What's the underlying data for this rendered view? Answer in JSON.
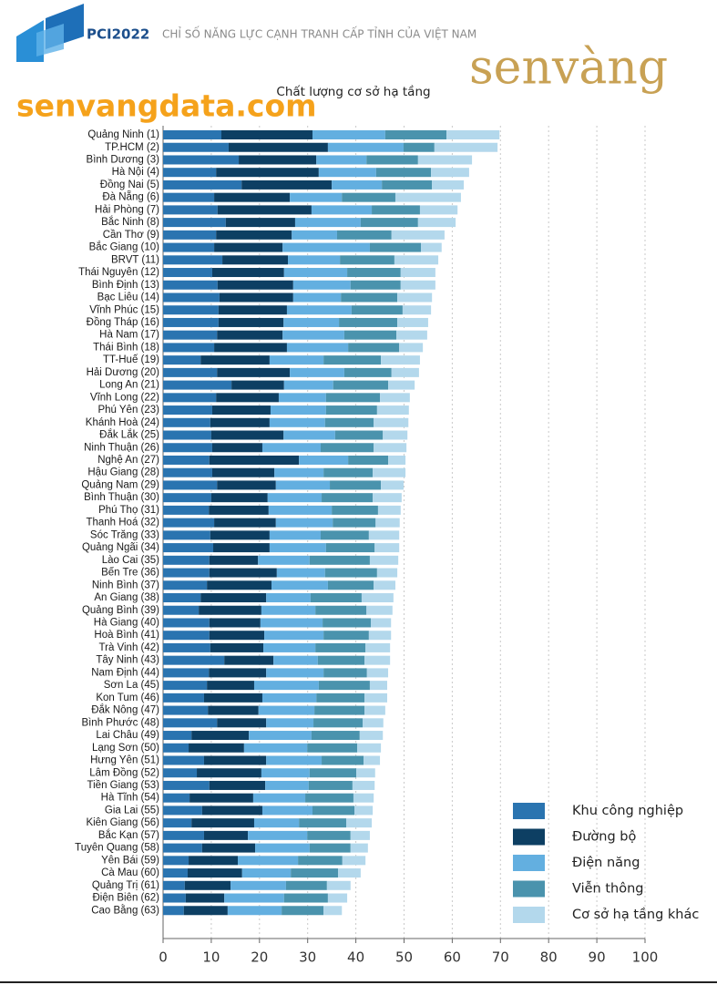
{
  "header": {
    "brand": "PCI2022",
    "subtitle": "CHỈ SỐ NĂNG LỰC CẠNH TRANH CẤP TỈNH CỦA VIỆT NAM",
    "site": "senvangdata.com",
    "logo": "senvàng"
  },
  "chart_data": {
    "type": "bar",
    "orientation": "horizontal",
    "stacked": true,
    "title": "Chất lượng cơ sở hạ tầng",
    "categories": [
      "Quảng Ninh (1)",
      "TP.HCM (2)",
      "Bình Dương (3)",
      "Hà Nội (4)",
      "Đồng Nai (5)",
      "Đà Nẵng (6)",
      "Hải Phòng (7)",
      "Bắc Ninh (8)",
      "Cần Thơ (9)",
      "Bắc Giang (10)",
      "BRVT (11)",
      "Thái Nguyên (12)",
      "Bình Định (13)",
      "Bạc Liêu (14)",
      "Vĩnh Phúc (15)",
      "Đồng Tháp (16)",
      "Hà Nam (17)",
      "Thái Bình (18)",
      "TT-Huế (19)",
      "Hải Dương (20)",
      "Long An (21)",
      "Vĩnh Long (22)",
      "Phú Yên (23)",
      "Khánh Hoà (24)",
      "Đắk Lắk (25)",
      "Ninh Thuận (26)",
      "Nghệ An (27)",
      "Hậu Giang (28)",
      "Quảng Nam (29)",
      "Bình Thuận (30)",
      "Phú Thọ (31)",
      "Thanh Hoá (32)",
      "Sóc Trăng (33)",
      "Quảng Ngãi (34)",
      "Lào Cai (35)",
      "Bến Tre (36)",
      "Ninh Bình (37)",
      "An Giang (38)",
      "Quảng Bình (39)",
      "Hà Giang (40)",
      "Hoà Bình (41)",
      "Trà Vinh (42)",
      "Tây Ninh (43)",
      "Nam Định (44)",
      "Sơn La (45)",
      "Kon Tum (46)",
      "Đắk Nông (47)",
      "Bình Phước (48)",
      "Lai Châu (49)",
      "Lạng Sơn (50)",
      "Hưng Yên (51)",
      "Lâm Đồng (52)",
      "Tiền Giang (53)",
      "Hà Tĩnh (54)",
      "Gia Lai (55)",
      "Kiên Giang (56)",
      "Bắc Kạn (57)",
      "Tuyên Quang (58)",
      "Yên Bái (59)",
      "Cà Mau (60)",
      "Quảng Trị (61)",
      "Điện Biên (62)",
      "Cao Bằng (63)"
    ],
    "series": [
      {
        "name": "Khu công nghiệp",
        "color": "#2a74b0",
        "values": [
          12.1,
          13.6,
          15.7,
          11.0,
          16.3,
          10.6,
          11.3,
          13.0,
          11.0,
          10.6,
          12.3,
          10.2,
          11.3,
          11.7,
          11.5,
          11.5,
          11.2,
          10.6,
          7.8,
          11.2,
          14.2,
          11.0,
          10.2,
          9.8,
          10.0,
          10.2,
          9.6,
          10.2,
          11.2,
          10.0,
          9.5,
          10.6,
          9.8,
          10.4,
          9.6,
          9.6,
          9.1,
          7.8,
          7.4,
          9.6,
          9.6,
          9.8,
          12.7,
          9.5,
          9.1,
          8.5,
          9.3,
          11.2,
          5.9,
          5.3,
          8.5,
          7.0,
          9.6,
          5.5,
          8.1,
          5.9,
          8.5,
          8.1,
          5.3,
          5.1,
          4.5,
          4.7,
          4.3
        ]
      },
      {
        "name": "Đường bộ",
        "color": "#0d3f63",
        "values": [
          18.9,
          20.6,
          16.1,
          21.3,
          18.7,
          15.7,
          19.5,
          14.4,
          15.7,
          14.2,
          13.6,
          14.9,
          15.7,
          15.3,
          14.2,
          13.5,
          13.6,
          15.1,
          14.3,
          15.1,
          10.9,
          13.0,
          12.1,
          12.3,
          15.0,
          10.4,
          18.6,
          12.9,
          12.2,
          11.7,
          12.4,
          12.8,
          12.3,
          11.7,
          10.1,
          14.0,
          13.4,
          13.6,
          13.0,
          10.6,
          11.4,
          11.0,
          10.2,
          11.9,
          9.8,
          12.1,
          10.5,
          10.2,
          11.9,
          11.5,
          12.9,
          13.4,
          11.6,
          13.2,
          12.5,
          13.0,
          9.1,
          11.0,
          10.2,
          11.3,
          9.5,
          8.0,
          9.1
        ]
      },
      {
        "name": "Điện năng",
        "color": "#63afe0",
        "values": [
          15.1,
          15.7,
          10.4,
          11.9,
          10.4,
          10.8,
          12.5,
          13.6,
          9.4,
          18.1,
          10.8,
          13.1,
          11.9,
          9.9,
          13.4,
          11.5,
          12.8,
          12.7,
          11.2,
          11.3,
          10.2,
          9.8,
          11.5,
          11.5,
          10.7,
          12.1,
          10.2,
          10.2,
          11.2,
          11.2,
          13.1,
          11.8,
          10.6,
          11.7,
          10.7,
          10.0,
          11.7,
          9.2,
          11.2,
          12.9,
          12.3,
          10.8,
          9.2,
          11.9,
          13.4,
          11.2,
          11.6,
          9.8,
          13.0,
          13.1,
          11.5,
          10.0,
          9.0,
          10.8,
          10.4,
          9.3,
          12.3,
          11.3,
          12.5,
          10.1,
          11.5,
          12.4,
          11.2
        ]
      },
      {
        "name": "Viễn thông",
        "color": "#4a93ad",
        "values": [
          12.7,
          6.4,
          10.7,
          11.4,
          10.4,
          11.1,
          10.0,
          11.9,
          11.3,
          10.6,
          11.3,
          11.1,
          10.4,
          11.7,
          10.6,
          12.1,
          10.8,
          10.6,
          11.9,
          9.8,
          11.4,
          11.2,
          10.6,
          10.1,
          9.9,
          11.0,
          8.3,
          10.2,
          10.6,
          10.6,
          9.6,
          8.9,
          10.0,
          10.1,
          12.5,
          10.8,
          9.5,
          10.6,
          10.6,
          10.0,
          9.4,
          10.4,
          9.7,
          9.0,
          10.6,
          10.0,
          10.4,
          10.2,
          10.0,
          10.4,
          8.7,
          9.7,
          9.1,
          10.0,
          8.7,
          9.8,
          9.0,
          8.5,
          9.2,
          9.8,
          8.5,
          9.1,
          8.7
        ]
      },
      {
        "name": "Cơ sở hạ tầng khác",
        "color": "#b3d8ec",
        "values": [
          11.0,
          13.1,
          11.2,
          7.9,
          6.6,
          13.6,
          7.8,
          7.8,
          11.0,
          4.3,
          9.1,
          7.2,
          7.2,
          7.2,
          5.9,
          6.4,
          6.4,
          4.9,
          8.1,
          5.7,
          5.5,
          6.2,
          6.6,
          7.2,
          5.1,
          6.8,
          3.6,
          6.8,
          4.7,
          6.0,
          4.7,
          5.0,
          6.3,
          5.1,
          5.9,
          4.2,
          4.5,
          6.6,
          5.4,
          4.2,
          4.6,
          5.1,
          5.3,
          4.4,
          3.6,
          4.7,
          4.3,
          4.3,
          4.8,
          4.9,
          3.4,
          3.9,
          4.6,
          4.2,
          3.8,
          5.3,
          4.0,
          3.6,
          4.8,
          4.7,
          4.9,
          4.0,
          3.8
        ]
      }
    ],
    "xlim": [
      0,
      100
    ],
    "xticks": [
      0,
      10,
      20,
      30,
      40,
      50,
      60,
      70,
      80,
      90,
      100
    ],
    "grid": true,
    "legend": "lower right"
  }
}
